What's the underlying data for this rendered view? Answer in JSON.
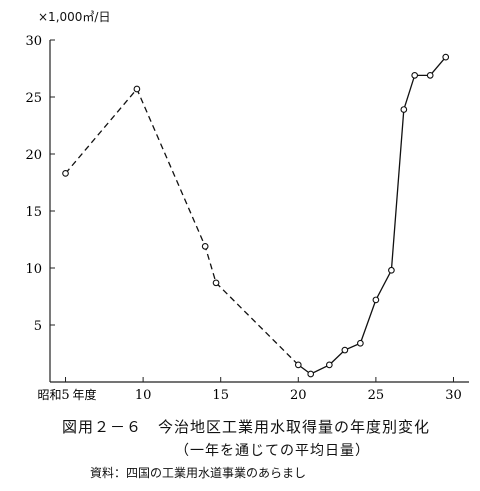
{
  "chart_data": {
    "type": "line",
    "title": "図用２－６　今治地区工業用水取得量の年度別変化",
    "subtitle": "（一年を通じての平均日量）",
    "source": "資料：四国の工業用水道事業のあらまし",
    "ylabel": "×1,000㎥/日",
    "xlabel": "",
    "x_axis_prefix": "昭和",
    "x_axis_suffix": "年度",
    "xlim": [
      4,
      31
    ],
    "ylim": [
      0,
      30
    ],
    "xticks": [
      5,
      10,
      15,
      20,
      25,
      30
    ],
    "yticks": [
      5,
      10,
      15,
      20,
      25,
      30
    ],
    "grid": false,
    "series": [
      {
        "style": "dashed",
        "points": [
          {
            "x": 5,
            "y": 18.3
          },
          {
            "x": 9.6,
            "y": 25.7
          },
          {
            "x": 14,
            "y": 11.9
          },
          {
            "x": 14.7,
            "y": 8.7
          },
          {
            "x": 20,
            "y": 1.5
          }
        ]
      },
      {
        "style": "solid",
        "points": [
          {
            "x": 20,
            "y": 1.5
          },
          {
            "x": 20.8,
            "y": 0.7
          },
          {
            "x": 22,
            "y": 1.5
          },
          {
            "x": 23,
            "y": 2.8
          },
          {
            "x": 24,
            "y": 3.4
          },
          {
            "x": 25,
            "y": 7.2
          },
          {
            "x": 26,
            "y": 9.8
          },
          {
            "x": 26.8,
            "y": 23.9
          },
          {
            "x": 27.5,
            "y": 26.9
          },
          {
            "x": 28.5,
            "y": 26.9
          },
          {
            "x": 29.5,
            "y": 28.5
          }
        ]
      }
    ]
  }
}
